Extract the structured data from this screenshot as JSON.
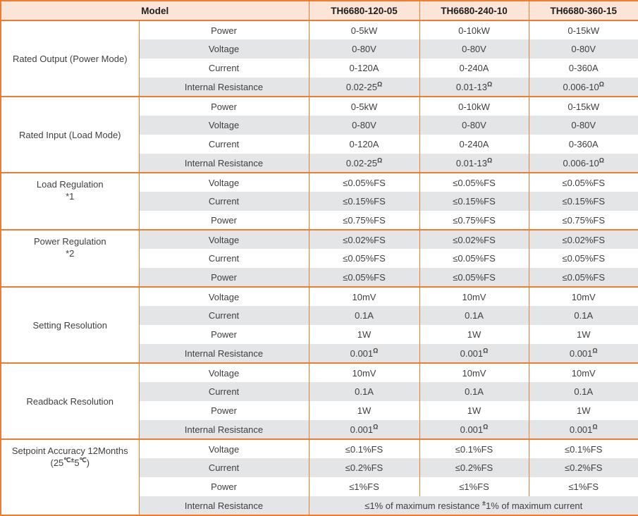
{
  "table": {
    "colors": {
      "border_orange": "#ed7d31",
      "header_bg": "#fce4d6",
      "stripe_gray": "#e4e5e6",
      "body_text": "#3f3f3f",
      "header_text": "#1f1f1f"
    },
    "header": {
      "model_label": "Model",
      "model_columns": [
        "TH6680-120-05",
        "TH6680-240-10",
        "TH6680-360-15"
      ]
    },
    "groups": [
      {
        "id": "rated-output",
        "label_lines": [
          "Rated Output (Power Mode)"
        ],
        "label_align": "center",
        "rows": [
          {
            "param": "Power",
            "values": [
              "0-5kW",
              "0-10kW",
              "0-15kW"
            ]
          },
          {
            "param": "Voltage",
            "values": [
              "0-80V",
              "0-80V",
              "0-80V"
            ]
          },
          {
            "param": "Current",
            "values": [
              "0-120A",
              "0-240A",
              "0-360A"
            ]
          },
          {
            "param": "Internal Resistance",
            "values": [
              "0.02-25^{Ω}",
              "0.01-13^{Ω}",
              "0.006-10^{Ω}"
            ]
          }
        ]
      },
      {
        "id": "rated-input",
        "label_lines": [
          "Rated Input (Load Mode)"
        ],
        "label_align": "center",
        "rows": [
          {
            "param": "Power",
            "values": [
              "0-5kW",
              "0-10kW",
              "0-15kW"
            ]
          },
          {
            "param": "Voltage",
            "values": [
              "0-80V",
              "0-80V",
              "0-80V"
            ]
          },
          {
            "param": "Current",
            "values": [
              "0-120A",
              "0-240A",
              "0-360A"
            ]
          },
          {
            "param": "Internal Resistance",
            "values": [
              "0.02-25^{Ω}",
              "0.01-13^{Ω}",
              "0.006-10^{Ω}"
            ]
          }
        ]
      },
      {
        "id": "load-regulation",
        "label_lines": [
          "Load Regulation",
          "*1"
        ],
        "label_align": "top",
        "rows": [
          {
            "param": "Voltage",
            "values": [
              "≤0.05%FS",
              "≤0.05%FS",
              "≤0.05%FS"
            ]
          },
          {
            "param": "Current",
            "values": [
              "≤0.15%FS",
              "≤0.15%FS",
              "≤0.15%FS"
            ]
          },
          {
            "param": "Power",
            "values": [
              "≤0.75%FS",
              "≤0.75%FS",
              "≤0.75%FS"
            ]
          }
        ]
      },
      {
        "id": "power-regulation",
        "label_lines": [
          "Power Regulation",
          "*2"
        ],
        "label_align": "top",
        "rows": [
          {
            "param": "Voltage",
            "values": [
              "≤0.02%FS",
              "≤0.02%FS",
              "≤0.02%FS"
            ]
          },
          {
            "param": "Current",
            "values": [
              "≤0.05%FS",
              "≤0.05%FS",
              "≤0.05%FS"
            ]
          },
          {
            "param": "Power",
            "values": [
              "≤0.05%FS",
              "≤0.05%FS",
              "≤0.05%FS"
            ]
          }
        ]
      },
      {
        "id": "setting-resolution",
        "label_lines": [
          "Setting Resolution"
        ],
        "label_align": "center",
        "rows": [
          {
            "param": "Voltage",
            "values": [
              "10mV",
              "10mV",
              "10mV"
            ]
          },
          {
            "param": "Current",
            "values": [
              "0.1A",
              "0.1A",
              "0.1A"
            ]
          },
          {
            "param": "Power",
            "values": [
              "1W",
              "1W",
              "1W"
            ]
          },
          {
            "param": "Internal Resistance",
            "values": [
              "0.001^{Ω}",
              "0.001^{Ω}",
              "0.001^{Ω}"
            ]
          }
        ]
      },
      {
        "id": "readback-resolution",
        "label_lines": [
          "Readback Resolution"
        ],
        "label_align": "center",
        "rows": [
          {
            "param": "Voltage",
            "values": [
              "10mV",
              "10mV",
              "10mV"
            ]
          },
          {
            "param": "Current",
            "values": [
              "0.1A",
              "0.1A",
              "0.1A"
            ]
          },
          {
            "param": "Power",
            "values": [
              "1W",
              "1W",
              "1W"
            ]
          },
          {
            "param": "Internal Resistance",
            "values": [
              "0.001^{Ω}",
              "0.001^{Ω}",
              "0.001^{Ω}"
            ]
          }
        ]
      },
      {
        "id": "setpoint-accuracy",
        "label_lines": [
          "Setpoint Accuracy 12Months",
          "(25^{℃±}5^{℃})"
        ],
        "label_align": "top",
        "rows": [
          {
            "param": "Voltage",
            "values": [
              "≤0.1%FS",
              "≤0.1%FS",
              "≤0.1%FS"
            ]
          },
          {
            "param": "Current",
            "values": [
              "≤0.2%FS",
              "≤0.2%FS",
              "≤0.2%FS"
            ]
          },
          {
            "param": "Power",
            "values": [
              "≤1%FS",
              "≤1%FS",
              "≤1%FS"
            ]
          },
          {
            "param": "Internal Resistance",
            "merged_value": "≤1% of maximum resistance ^{±}1% of maximum current"
          }
        ]
      }
    ]
  }
}
